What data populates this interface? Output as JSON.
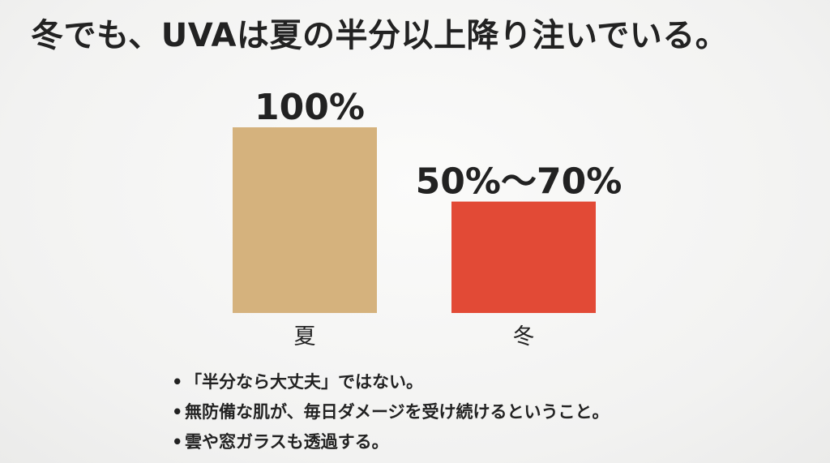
{
  "title": "冬でも、UVAは夏の半分以上降り注いでいる。",
  "chart_data": {
    "type": "bar",
    "categories": [
      "夏",
      "冬"
    ],
    "values": [
      100,
      60
    ],
    "value_range_low": [
      100,
      50
    ],
    "value_range_high": [
      100,
      70
    ],
    "value_labels": [
      "100%",
      "50%〜70%"
    ],
    "colors": [
      "#d5b27d",
      "#e24a36"
    ],
    "title": "",
    "xlabel": "",
    "ylabel": "",
    "ylim": [
      0,
      100
    ],
    "grid": false,
    "legend": "none"
  },
  "notes": {
    "bullet": "•",
    "items": [
      "「半分なら大丈夫」ではない。",
      "無防備な肌が、毎日ダメージを受け続けるということ。",
      "雲や窓ガラスも透過する。"
    ]
  }
}
